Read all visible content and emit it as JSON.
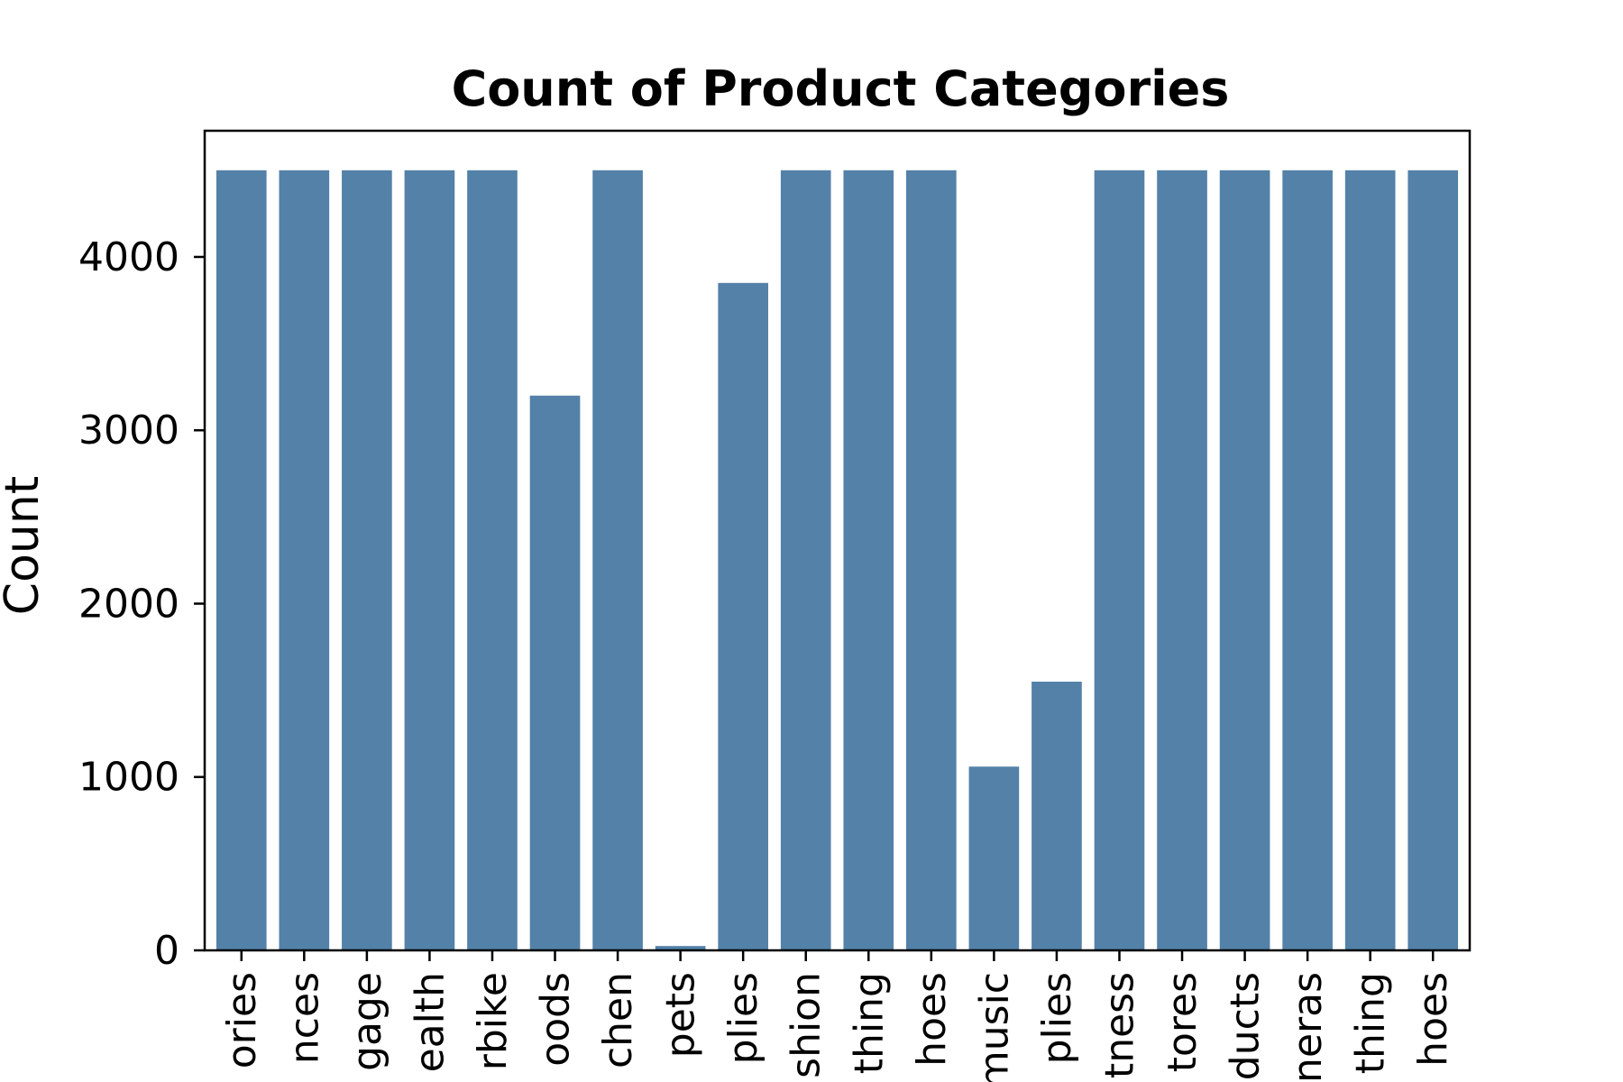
{
  "chart_data": {
    "type": "bar",
    "title": "Count of Product Categories",
    "xlabel": "",
    "ylabel": "Count",
    "ylim": [
      0,
      4728
    ],
    "yticks": [
      0,
      1000,
      2000,
      3000,
      4000
    ],
    "ytick_labels": [
      "0",
      "1000",
      "2000",
      "3000",
      "4000"
    ],
    "grid": false,
    "bar_color": "#5381a8",
    "categories": [
      "ories",
      "nces",
      "gage",
      "ealth",
      "rbike",
      "oods",
      "chen",
      "pets",
      "plies",
      "shion",
      "thing",
      "hoes",
      "music",
      "plies",
      "tness",
      "tores",
      "ducts",
      "neras",
      "thing",
      "hoes"
    ],
    "values": [
      4500,
      4500,
      4500,
      4500,
      4500,
      3200,
      4500,
      25,
      3850,
      4500,
      4500,
      4500,
      1060,
      1550,
      4500,
      4500,
      4500,
      4500,
      4500,
      4500
    ]
  }
}
